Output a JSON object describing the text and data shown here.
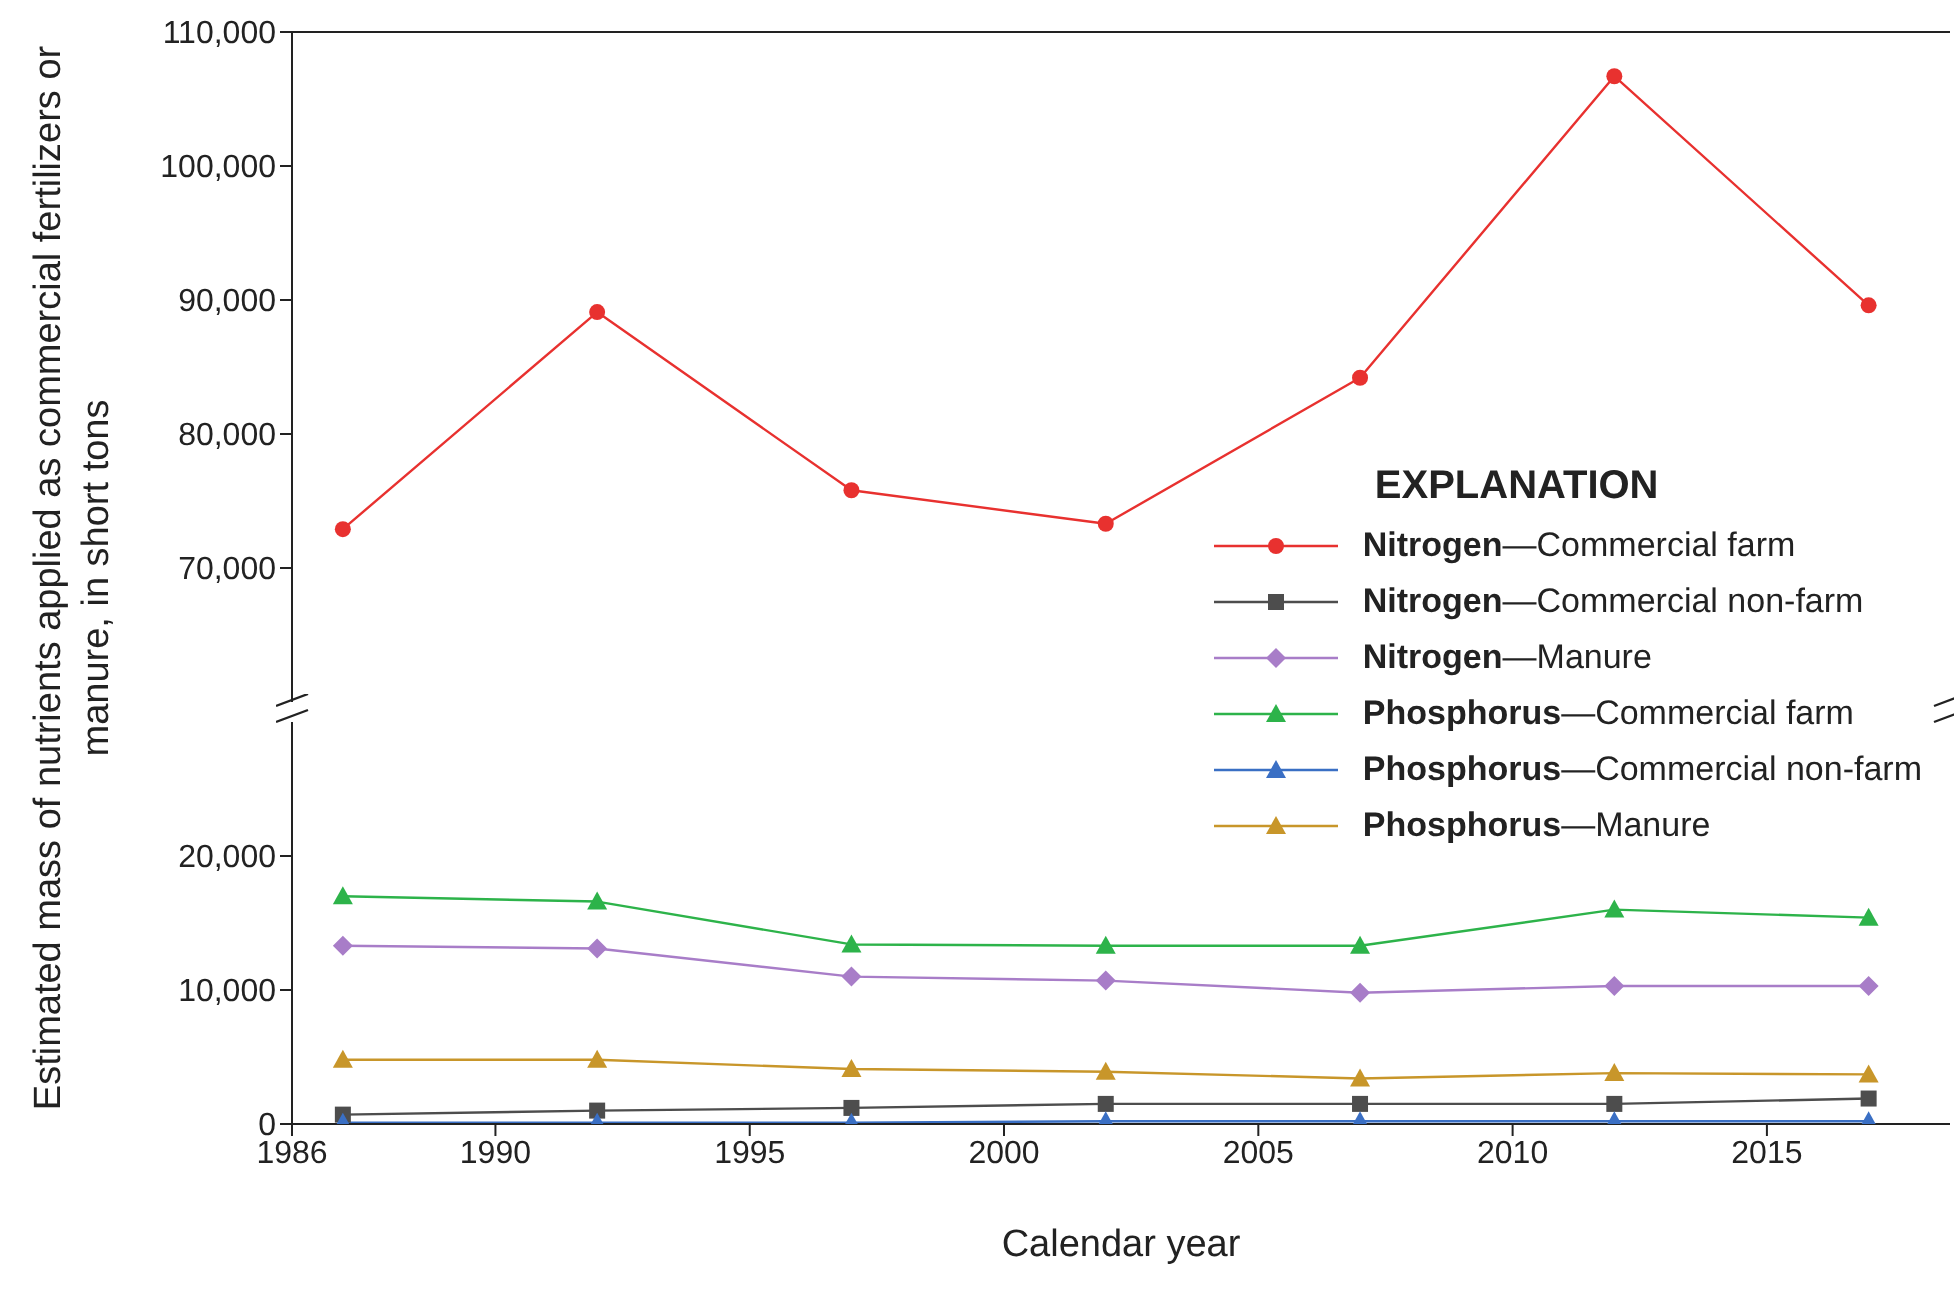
{
  "chart_data": [
    {
      "type": "line",
      "legend_title": "EXPLANATION",
      "x": [
        1987,
        1992,
        1997,
        2002,
        2007,
        2012,
        2017
      ],
      "xlim": [
        1986,
        2018.6
      ],
      "ylim": [
        60000,
        110000
      ],
      "yticks": [
        {
          "value": 70000,
          "label": "70,000"
        },
        {
          "value": 80000,
          "label": "80,000"
        },
        {
          "value": 90000,
          "label": "90,000"
        },
        {
          "value": 100000,
          "label": "100,000"
        },
        {
          "value": 110000,
          "label": "110,000"
        }
      ],
      "tick_labels": "y",
      "legend": "right",
      "series": [
        {
          "name": "Nitrogen—Commercial farm",
          "color": "#e8312f",
          "marker": "circle",
          "values": [
            72900,
            89100,
            75800,
            73300,
            84200,
            106700,
            89600
          ]
        }
      ]
    },
    {
      "type": "line",
      "xlabel": "Calendar year",
      "ylabel": "Estimated mass of nutrients applied as commercial fertilizers or manure, in short tons",
      "x": [
        1987,
        1992,
        1997,
        2002,
        2007,
        2012,
        2017
      ],
      "xlim": [
        1986,
        2018.6
      ],
      "xticks": [
        1986,
        1990,
        1995,
        2000,
        2005,
        2010,
        2015
      ],
      "ylim": [
        0,
        30000
      ],
      "yticks": [
        0,
        {
          "value": 10000,
          "label": "10,000"
        },
        {
          "value": 20000,
          "label": "20,000"
        }
      ],
      "legend": "top right",
      "series": [
        {
          "name": "Nitrogen—Commercial non-farm",
          "color": "#4d4d4d",
          "marker": "square",
          "values": [
            700,
            1000,
            1200,
            1500,
            1500,
            1500,
            1900
          ]
        },
        {
          "name": "Nitrogen—Manure",
          "color": "#a87dc8",
          "marker": "diamond",
          "values": [
            13300,
            13100,
            11000,
            10700,
            9800,
            10300,
            10300
          ]
        },
        {
          "name": "Phosphorus—Commercial farm",
          "color": "#2db34a",
          "marker": "triangle",
          "values": [
            17000,
            16600,
            13400,
            13300,
            13300,
            16000,
            15400
          ]
        },
        {
          "name": "Phosphorus—Commercial non-farm",
          "color": "#3a6fc4",
          "marker": "triangle",
          "values": [
            100,
            100,
            100,
            200,
            200,
            200,
            200
          ]
        },
        {
          "name": "Phosphorus—Manure",
          "color": "#c8962a",
          "marker": "triangle",
          "values": [
            4800,
            4800,
            4100,
            3900,
            3400,
            3800,
            3700
          ]
        }
      ]
    }
  ]
}
